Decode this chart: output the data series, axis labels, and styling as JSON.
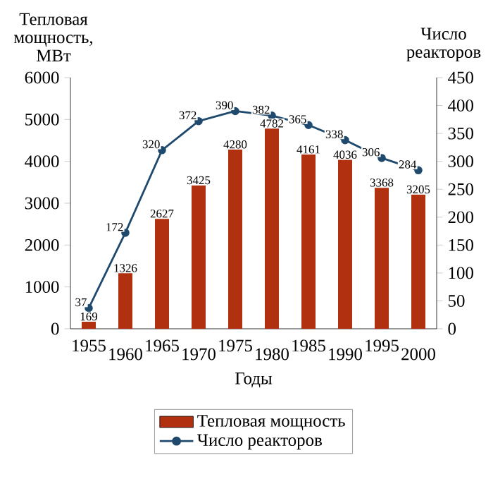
{
  "chart_data": {
    "type": "bar",
    "xlabel": "Годы",
    "ylabel": "Тепловая мощность, МВт",
    "y2label": "Число реакторов",
    "categories": [
      "1955",
      "1960",
      "1965",
      "1970",
      "1975",
      "1980",
      "1985",
      "1990",
      "1995",
      "2000"
    ],
    "series": [
      {
        "name": "Тепловая мощность",
        "color": "#b0300f",
        "values": [
          169,
          1326,
          2627,
          3425,
          4280,
          4782,
          4161,
          4036,
          3368,
          3205
        ]
      },
      {
        "name": "Число реакторов",
        "type": "line",
        "axis": "y2",
        "marker": "circle",
        "color": "#1f4a6e",
        "values": [
          37,
          172,
          320,
          372,
          390,
          382,
          365,
          338,
          306,
          284
        ]
      }
    ],
    "ylim": [
      0,
      6000
    ],
    "yticks": [
      0,
      1000,
      2000,
      3000,
      4000,
      5000,
      6000
    ],
    "y2lim": [
      0,
      450
    ],
    "y2ticks": [
      0,
      50,
      100,
      150,
      200,
      250,
      300,
      350,
      400,
      450
    ],
    "data_labels": true,
    "legend": "bottom",
    "grid": false
  }
}
